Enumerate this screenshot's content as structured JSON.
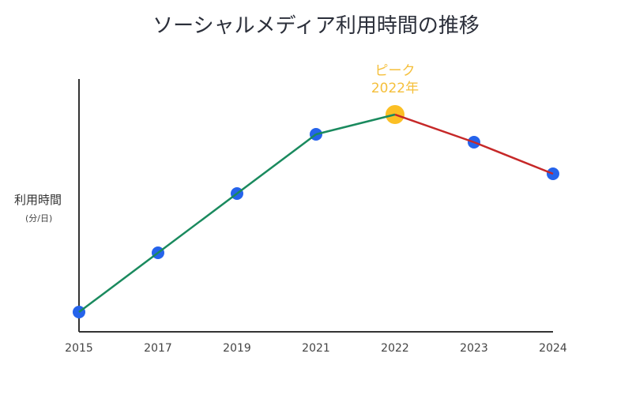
{
  "chart_data": {
    "type": "line",
    "title": "ソーシャルメディア利用時間の推移",
    "xlabel": "",
    "ylabel": "利用時間",
    "yunit": "(分/日)",
    "categories": [
      "2015",
      "2017",
      "2019",
      "2021",
      "2022",
      "2023",
      "2024"
    ],
    "values": [
      25,
      100,
      175,
      250,
      275,
      240,
      200
    ],
    "ylim": [
      0,
      320
    ],
    "grid": false,
    "note": "y values are relative estimates; no y-axis ticks shown",
    "annotation": {
      "category": "2022",
      "line1": "ピーク",
      "line2": "2022年"
    },
    "colors": {
      "rise": "#1a8a5e",
      "fall": "#c62828",
      "point": "#2563eb",
      "peak": "#fbbf24",
      "axis": "#333333"
    }
  }
}
